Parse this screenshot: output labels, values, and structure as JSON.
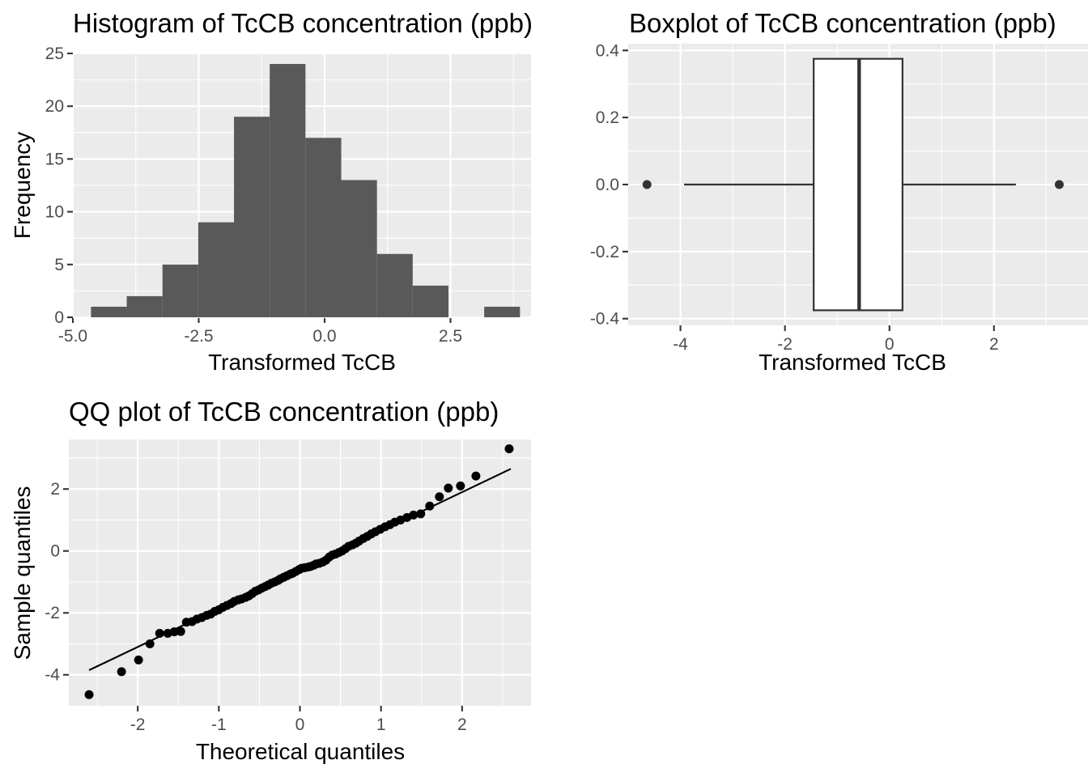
{
  "chart_data": [
    {
      "type": "bar",
      "title": "Histogram of TcCB concentration (ppb)",
      "xlabel": "Transformed TcCB",
      "ylabel": "Frequency",
      "xlim": [
        -5.0,
        4.1
      ],
      "ylim": [
        0,
        25
      ],
      "x_ticks": [
        "-5.0",
        "-2.5",
        "0.0",
        "2.5"
      ],
      "y_ticks": [
        "0",
        "5",
        "10",
        "15",
        "20",
        "25"
      ],
      "bin_edges": [
        -4.64,
        -3.93,
        -3.22,
        -2.51,
        -1.8,
        -1.09,
        -0.38,
        0.33,
        1.04,
        1.75,
        2.46,
        3.17,
        3.88
      ],
      "values": [
        1,
        2,
        5,
        9,
        19,
        24,
        17,
        13,
        6,
        3,
        0,
        1
      ],
      "fill": "#595959",
      "grid": true
    },
    {
      "type": "boxplot",
      "title": "Boxplot of TcCB concentration (ppb)",
      "xlabel": "Transformed TcCB",
      "ylabel": "",
      "xlim": [
        -5.0,
        3.8
      ],
      "ylim": [
        -0.42,
        0.42
      ],
      "x_ticks": [
        "-4",
        "-2",
        "0",
        "2"
      ],
      "y_ticks": [
        "-0.4",
        "-0.2",
        "0.0",
        "0.2",
        "0.4"
      ],
      "box": {
        "q1": -1.45,
        "median": -0.58,
        "q3": 0.25,
        "whisker_low": -3.93,
        "whisker_high": 2.42,
        "y_bottom": -0.375,
        "y_top": 0.375
      },
      "outliers": [
        -4.64,
        3.25
      ],
      "grid": true
    },
    {
      "type": "scatter",
      "title": "QQ plot of TcCB concentration (ppb)",
      "xlabel": "Theoretical quantiles",
      "ylabel": "Sample quantiles",
      "xlim": [
        -2.85,
        2.85
      ],
      "ylim": [
        -5.0,
        3.6
      ],
      "x_ticks": [
        "-2",
        "-1",
        "0",
        "1",
        "2"
      ],
      "y_ticks": [
        "-4",
        "-2",
        "0",
        "2"
      ],
      "points": [
        [
          -2.6,
          -4.64
        ],
        [
          -2.2,
          -3.9
        ],
        [
          -1.99,
          -3.52
        ],
        [
          -1.85,
          -3.0
        ],
        [
          -1.73,
          -2.66
        ],
        [
          -1.63,
          -2.66
        ],
        [
          -1.55,
          -2.61
        ],
        [
          -1.47,
          -2.6
        ],
        [
          -1.4,
          -2.3
        ],
        [
          -1.33,
          -2.28
        ],
        [
          -1.27,
          -2.2
        ],
        [
          -1.21,
          -2.15
        ],
        [
          -1.15,
          -2.08
        ],
        [
          -1.1,
          -2.04
        ],
        [
          -1.05,
          -1.95
        ],
        [
          -1.0,
          -1.9
        ],
        [
          -0.95,
          -1.82
        ],
        [
          -0.9,
          -1.76
        ],
        [
          -0.85,
          -1.7
        ],
        [
          -0.81,
          -1.63
        ],
        [
          -0.76,
          -1.58
        ],
        [
          -0.72,
          -1.55
        ],
        [
          -0.67,
          -1.5
        ],
        [
          -0.63,
          -1.45
        ],
        [
          -0.59,
          -1.38
        ],
        [
          -0.55,
          -1.3
        ],
        [
          -0.51,
          -1.26
        ],
        [
          -0.47,
          -1.2
        ],
        [
          -0.43,
          -1.15
        ],
        [
          -0.39,
          -1.1
        ],
        [
          -0.35,
          -1.04
        ],
        [
          -0.31,
          -1.0
        ],
        [
          -0.27,
          -0.95
        ],
        [
          -0.24,
          -0.9
        ],
        [
          -0.2,
          -0.85
        ],
        [
          -0.16,
          -0.8
        ],
        [
          -0.12,
          -0.75
        ],
        [
          -0.09,
          -0.72
        ],
        [
          -0.05,
          -0.66
        ],
        [
          -0.01,
          -0.6
        ],
        [
          0.02,
          -0.56
        ],
        [
          0.06,
          -0.54
        ],
        [
          0.1,
          -0.52
        ],
        [
          0.13,
          -0.5
        ],
        [
          0.17,
          -0.46
        ],
        [
          0.2,
          -0.42
        ],
        [
          0.24,
          -0.4
        ],
        [
          0.28,
          -0.36
        ],
        [
          0.32,
          -0.3
        ],
        [
          0.36,
          -0.2
        ],
        [
          0.4,
          -0.13
        ],
        [
          0.44,
          -0.1
        ],
        [
          0.48,
          -0.05
        ],
        [
          0.52,
          0.0
        ],
        [
          0.56,
          0.07
        ],
        [
          0.6,
          0.15
        ],
        [
          0.65,
          0.2
        ],
        [
          0.69,
          0.25
        ],
        [
          0.73,
          0.32
        ],
        [
          0.78,
          0.4
        ],
        [
          0.83,
          0.47
        ],
        [
          0.88,
          0.55
        ],
        [
          0.93,
          0.62
        ],
        [
          0.99,
          0.7
        ],
        [
          1.05,
          0.78
        ],
        [
          1.11,
          0.85
        ],
        [
          1.17,
          0.93
        ],
        [
          1.24,
          1.0
        ],
        [
          1.32,
          1.08
        ],
        [
          1.4,
          1.16
        ],
        [
          1.49,
          1.2
        ],
        [
          1.6,
          1.45
        ],
        [
          1.72,
          1.75
        ],
        [
          1.83,
          2.03
        ],
        [
          1.98,
          2.1
        ],
        [
          2.17,
          2.42
        ],
        [
          2.58,
          3.3
        ]
      ],
      "reference_line": {
        "x": [
          -2.6,
          2.6
        ],
        "y": [
          -3.85,
          2.65
        ]
      },
      "grid": true
    }
  ]
}
